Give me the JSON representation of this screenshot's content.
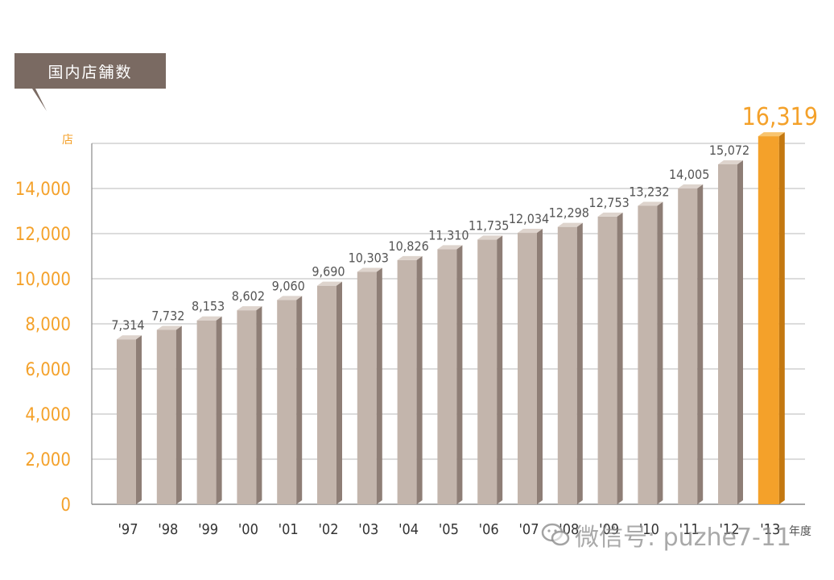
{
  "chart_data": {
    "type": "bar",
    "title": "国内店舗数",
    "ylabel": "店",
    "xlabel": "年度",
    "ylim": [
      0,
      16000
    ],
    "yticks": [
      "0",
      "2,000",
      "4,000",
      "6,000",
      "8,000",
      "10,000",
      "12,000",
      "14,000"
    ],
    "categories": [
      "'97",
      "'98",
      "'99",
      "'00",
      "'01",
      "'02",
      "'03",
      "'04",
      "'05",
      "'06",
      "'07",
      "'08",
      "'09",
      "'10",
      "'11",
      "'12",
      "'13"
    ],
    "values": [
      7314,
      7732,
      8153,
      8602,
      9060,
      9690,
      10303,
      10826,
      11310,
      11735,
      12034,
      12298,
      12753,
      13232,
      14005,
      15072,
      16319
    ],
    "value_labels": [
      "7,314",
      "7,732",
      "8,153",
      "8,602",
      "9,060",
      "9,690",
      "10,303",
      "10,826",
      "11,310",
      "11,735",
      "12,034",
      "12,298",
      "12,753",
      "13,232",
      "14,005",
      "15,072",
      "16,319"
    ],
    "highlight_index": 16,
    "grid": true,
    "colors": {
      "bar_front": "#c3b5ac",
      "bar_side": "#8e7e76",
      "bar_top": "#ded4cd",
      "highlight_front": "#f4a12a",
      "highlight_side": "#c47810",
      "highlight_top": "#f8c46e",
      "axis_text": "#f4a12a",
      "label_text": "#555555",
      "title_bg": "#7a6a62",
      "title_text": "#ffffff",
      "grid": "#b9b9b9"
    }
  },
  "watermark": {
    "text": "微信号: puzhe7-11",
    "icon": "wechat-icon"
  }
}
